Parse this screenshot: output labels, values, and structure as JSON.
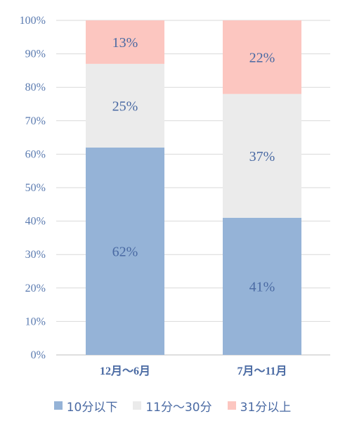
{
  "chart_data": {
    "type": "bar",
    "stacked": true,
    "categories": [
      "12月～6月",
      "7月～11月"
    ],
    "series": [
      {
        "name": "10分以下",
        "values": [
          62,
          41
        ],
        "labels": [
          "62%",
          "41%"
        ],
        "color": "#95b3d7"
      },
      {
        "name": "11分～30分",
        "values": [
          25,
          37
        ],
        "labels": [
          "25%",
          "37%"
        ],
        "color": "#ebebeb"
      },
      {
        "name": "31分以上",
        "values": [
          13,
          22
        ],
        "labels": [
          "13%",
          "22%"
        ],
        "color": "#fcc6c0"
      }
    ],
    "yticks": [
      "0%",
      "10%",
      "20%",
      "30%",
      "40%",
      "50%",
      "60%",
      "70%",
      "80%",
      "90%",
      "100%"
    ],
    "ylim": [
      0,
      100
    ],
    "grid": true,
    "legend_position": "bottom"
  }
}
